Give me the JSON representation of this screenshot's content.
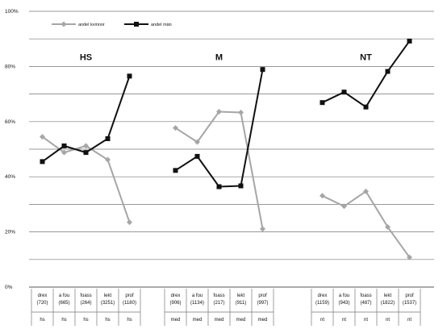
{
  "chart_data": {
    "type": "line",
    "title": "",
    "xlabel": "",
    "ylabel": "",
    "ylim": [
      0,
      100
    ],
    "y_ticks": [
      "0%",
      "20%",
      "40%",
      "60%",
      "80%",
      "100%"
    ],
    "grid": true,
    "legend_position": "top-left",
    "panels": [
      {
        "label": "HS",
        "categories": [
          [
            "drex",
            "(720)"
          ],
          [
            "a fou",
            "(665)"
          ],
          [
            "foass",
            "(264)"
          ],
          [
            "lekt",
            "(3251)"
          ],
          [
            "prof",
            "(1180)"
          ]
        ],
        "codes": [
          "hs",
          "hs",
          "hs",
          "hs",
          "hs"
        ]
      },
      {
        "label": "M",
        "categories": [
          [
            "drex",
            "(906)"
          ],
          [
            "a fou",
            "(1134)"
          ],
          [
            "foass",
            "(217)"
          ],
          [
            "lekt",
            "(911)"
          ],
          [
            "prof",
            "(997)"
          ]
        ],
        "codes": [
          "med",
          "med",
          "med",
          "med",
          "med"
        ]
      },
      {
        "label": "NT",
        "categories": [
          [
            "drex",
            "(1159)"
          ],
          [
            "a fou",
            "(943)"
          ],
          [
            "foass",
            "(487)"
          ],
          [
            "lekt",
            "(1822)"
          ],
          [
            "prof",
            "(1537)"
          ]
        ],
        "codes": [
          "nt",
          "nt",
          "nt",
          "nt",
          "nt"
        ]
      }
    ],
    "series": [
      {
        "name": "andel kvinnor",
        "color": "#a6a6a6",
        "marker": "diamond",
        "values": [
          [
            54.5,
            48.8,
            51.2,
            46.2,
            23.5
          ],
          [
            57.7,
            52.6,
            63.6,
            63.3,
            21.1
          ],
          [
            33.1,
            29.3,
            34.7,
            21.8,
            10.8
          ]
        ]
      },
      {
        "name": "andel män",
        "color": "#111111",
        "marker": "square",
        "values": [
          [
            45.5,
            51.2,
            48.8,
            53.8,
            76.5
          ],
          [
            42.3,
            47.4,
            36.4,
            36.7,
            78.9
          ],
          [
            66.9,
            70.7,
            65.3,
            78.2,
            89.2
          ]
        ]
      }
    ]
  }
}
